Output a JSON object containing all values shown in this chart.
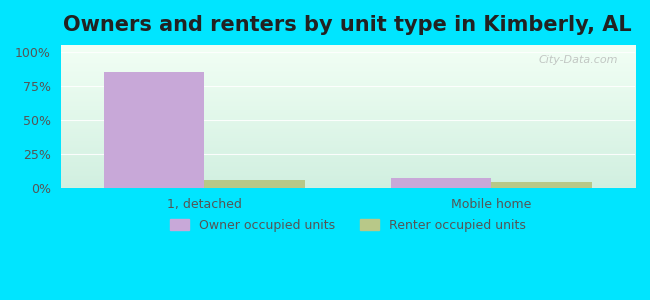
{
  "title": "Owners and renters by unit type in Kimberly, AL",
  "categories": [
    "1, detached",
    "Mobile home"
  ],
  "owner_values": [
    85,
    8
  ],
  "renter_values": [
    6,
    5
  ],
  "owner_color": "#c8a8d8",
  "renter_color": "#b8c888",
  "outer_bg": "#00e5ff",
  "yticks": [
    0,
    25,
    50,
    75,
    100
  ],
  "ytick_labels": [
    "0%",
    "25%",
    "50%",
    "75%",
    "100%"
  ],
  "legend_owner": "Owner occupied units",
  "legend_renter": "Renter occupied units",
  "title_fontsize": 15,
  "watermark": "City-Data.com",
  "bar_width": 0.35
}
